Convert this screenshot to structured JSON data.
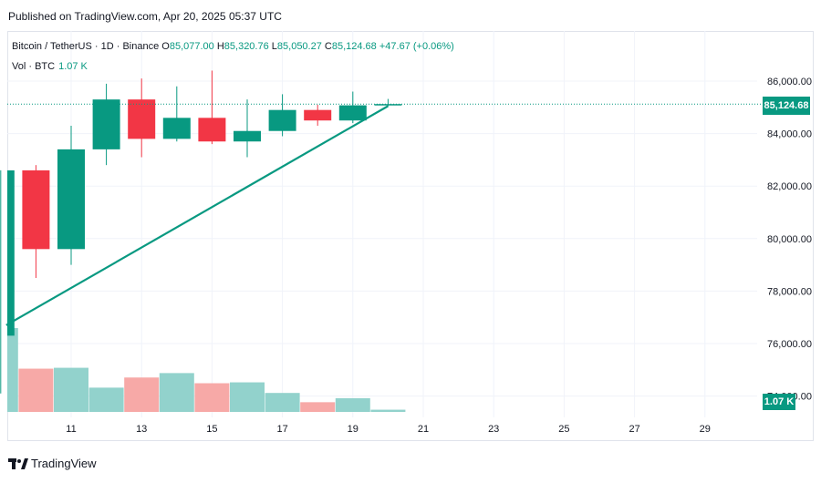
{
  "header": {
    "published": "Published on TradingView.com, Apr 20, 2025 05:37 UTC"
  },
  "legend": {
    "symbol": "Bitcoin / TetherUS · 1D · Binance",
    "o_label": "O",
    "o": "85,077.00",
    "h_label": "H",
    "h": "85,320.76",
    "l_label": "L",
    "l": "85,050.27",
    "c_label": "C",
    "c": "85,124.68",
    "change": "+47.67 (+0.06%)",
    "vol_label": "Vol · BTC",
    "vol_value": "1.07 K"
  },
  "price_tag": "85,124.68",
  "volume_tag": "1.07 K",
  "brand": "TradingView",
  "colors": {
    "up": "#089981",
    "down": "#f23645",
    "up_vol": "#92d2cc",
    "down_vol": "#f7a9a7"
  },
  "chart_data": {
    "type": "candlestick",
    "y_ticks": [
      "86,000.00",
      "84,000.00",
      "82,000.00",
      "80,000.00",
      "78,000.00",
      "76,000.00",
      "74,000.00"
    ],
    "x_ticks": [
      "11",
      "13",
      "15",
      "17",
      "19",
      "21",
      "23",
      "25",
      "27",
      "29"
    ],
    "ylim": [
      73500,
      87200
    ],
    "candles": [
      {
        "day": 9,
        "o": 76300,
        "h": 82600,
        "l": 74100,
        "c": 82600,
        "vol": 1.9
      },
      {
        "day": 10,
        "o": 82600,
        "h": 82800,
        "l": 78500,
        "c": 79600,
        "vol": 0.98
      },
      {
        "day": 11,
        "o": 79600,
        "h": 84300,
        "l": 79000,
        "c": 83400,
        "vol": 1.0
      },
      {
        "day": 12,
        "o": 83400,
        "h": 85900,
        "l": 82800,
        "c": 85300,
        "vol": 0.55
      },
      {
        "day": 13,
        "o": 85300,
        "h": 86100,
        "l": 83100,
        "c": 83800,
        "vol": 0.78
      },
      {
        "day": 14,
        "o": 83800,
        "h": 85800,
        "l": 83700,
        "c": 84600,
        "vol": 0.88
      },
      {
        "day": 15,
        "o": 84600,
        "h": 86400,
        "l": 83600,
        "c": 83700,
        "vol": 0.65
      },
      {
        "day": 16,
        "o": 83700,
        "h": 85300,
        "l": 83100,
        "c": 84100,
        "vol": 0.67
      },
      {
        "day": 17,
        "o": 84100,
        "h": 85500,
        "l": 83900,
        "c": 84900,
        "vol": 0.43
      },
      {
        "day": 18,
        "o": 84900,
        "h": 85100,
        "l": 84300,
        "c": 84500,
        "vol": 0.22
      },
      {
        "day": 19,
        "o": 84500,
        "h": 85600,
        "l": 84400,
        "c": 85077,
        "vol": 0.31
      },
      {
        "day": 20,
        "o": 85077,
        "h": 85320.76,
        "l": 85050.27,
        "c": 85124.68,
        "vol": 0.05
      }
    ],
    "trendline": {
      "from": {
        "day": 9,
        "price": 76700
      },
      "to": {
        "day": 20,
        "price": 85050
      }
    },
    "last_price": 85124.68
  }
}
